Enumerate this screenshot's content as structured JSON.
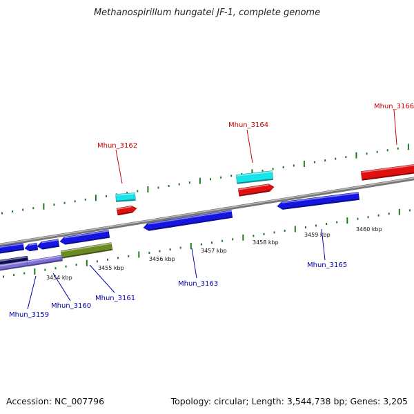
{
  "title": "Methanospirillum hungatei JF-1, complete genome",
  "footer": {
    "accession": "Accession: NC_007796",
    "summary": "Topology: circular; Length: 3,544,738 bp; Genes: 3,205"
  },
  "colors": {
    "plus_label": "#cc0000",
    "minus_label": "#0000aa",
    "blue_gene": "#1515e0",
    "red_gene": "#e01010",
    "cyan_gene": "#18e4ea",
    "olive_gene": "#6b8a25",
    "lavender_gene": "#7d6ed8",
    "navy_gene": "#101060",
    "backbone": "#888888",
    "tick": "#1e7a1e"
  },
  "ticks": [
    {
      "label": "3454 kbp"
    },
    {
      "label": "3455 kbp"
    },
    {
      "label": "3456 kbp"
    },
    {
      "label": "3457 kbp"
    },
    {
      "label": "3458 kbp"
    },
    {
      "label": "3459 kbp"
    },
    {
      "label": "3460 kbp"
    }
  ],
  "gene_labels": [
    {
      "id": "Mhun_3159",
      "strand": "minus"
    },
    {
      "id": "Mhun_3160",
      "strand": "minus"
    },
    {
      "id": "Mhun_3161",
      "strand": "minus"
    },
    {
      "id": "Mhun_3162",
      "strand": "plus"
    },
    {
      "id": "Mhun_3163",
      "strand": "minus"
    },
    {
      "id": "Mhun_3164",
      "strand": "plus"
    },
    {
      "id": "Mhun_3165",
      "strand": "minus"
    },
    {
      "id": "Mhun_3166",
      "strand": "plus"
    }
  ]
}
